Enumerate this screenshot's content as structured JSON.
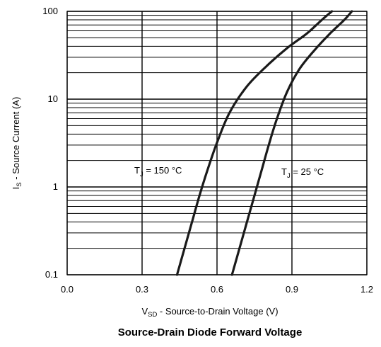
{
  "chart_data": {
    "type": "line",
    "title": "Source-Drain Diode Forward Voltage",
    "xlabel": {
      "main": "V",
      "sub": "SD",
      "rest": " - Source-to-Drain Voltage (V)"
    },
    "ylabel": {
      "main": "I",
      "sub": "S",
      "rest": " - Source Current (A)"
    },
    "xlim": [
      0.0,
      1.2
    ],
    "ylim": [
      0.1,
      100
    ],
    "yscale": "log",
    "grid": true,
    "x_ticks": [
      "0.0",
      "0.3",
      "0.6",
      "0.9",
      "1.2"
    ],
    "x_tick_values": [
      0.0,
      0.3,
      0.6,
      0.9,
      1.2
    ],
    "y_ticks": [
      "0.1",
      "1",
      "10",
      "100"
    ],
    "y_tick_values": [
      0.1,
      1,
      10,
      100
    ],
    "series": [
      {
        "label": {
          "main": "T",
          "sub": "J",
          "rest": " = 150 °C"
        },
        "x": [
          0.44,
          0.47,
          0.5,
          0.53,
          0.56,
          0.6,
          0.65,
          0.72,
          0.8,
          0.88,
          0.96,
          1.02,
          1.06
        ],
        "y": [
          0.1,
          0.2,
          0.4,
          0.8,
          1.5,
          3.2,
          7.0,
          14,
          24,
          38,
          56,
          80,
          100
        ]
      },
      {
        "label": {
          "main": "T",
          "sub": "J",
          "rest": " = 25 °C"
        },
        "x": [
          0.66,
          0.69,
          0.72,
          0.75,
          0.78,
          0.81,
          0.84,
          0.88,
          0.93,
          0.99,
          1.05,
          1.11,
          1.14
        ],
        "y": [
          0.1,
          0.2,
          0.4,
          0.8,
          1.6,
          3.2,
          6.0,
          12,
          22,
          36,
          55,
          80,
          100
        ]
      }
    ]
  }
}
